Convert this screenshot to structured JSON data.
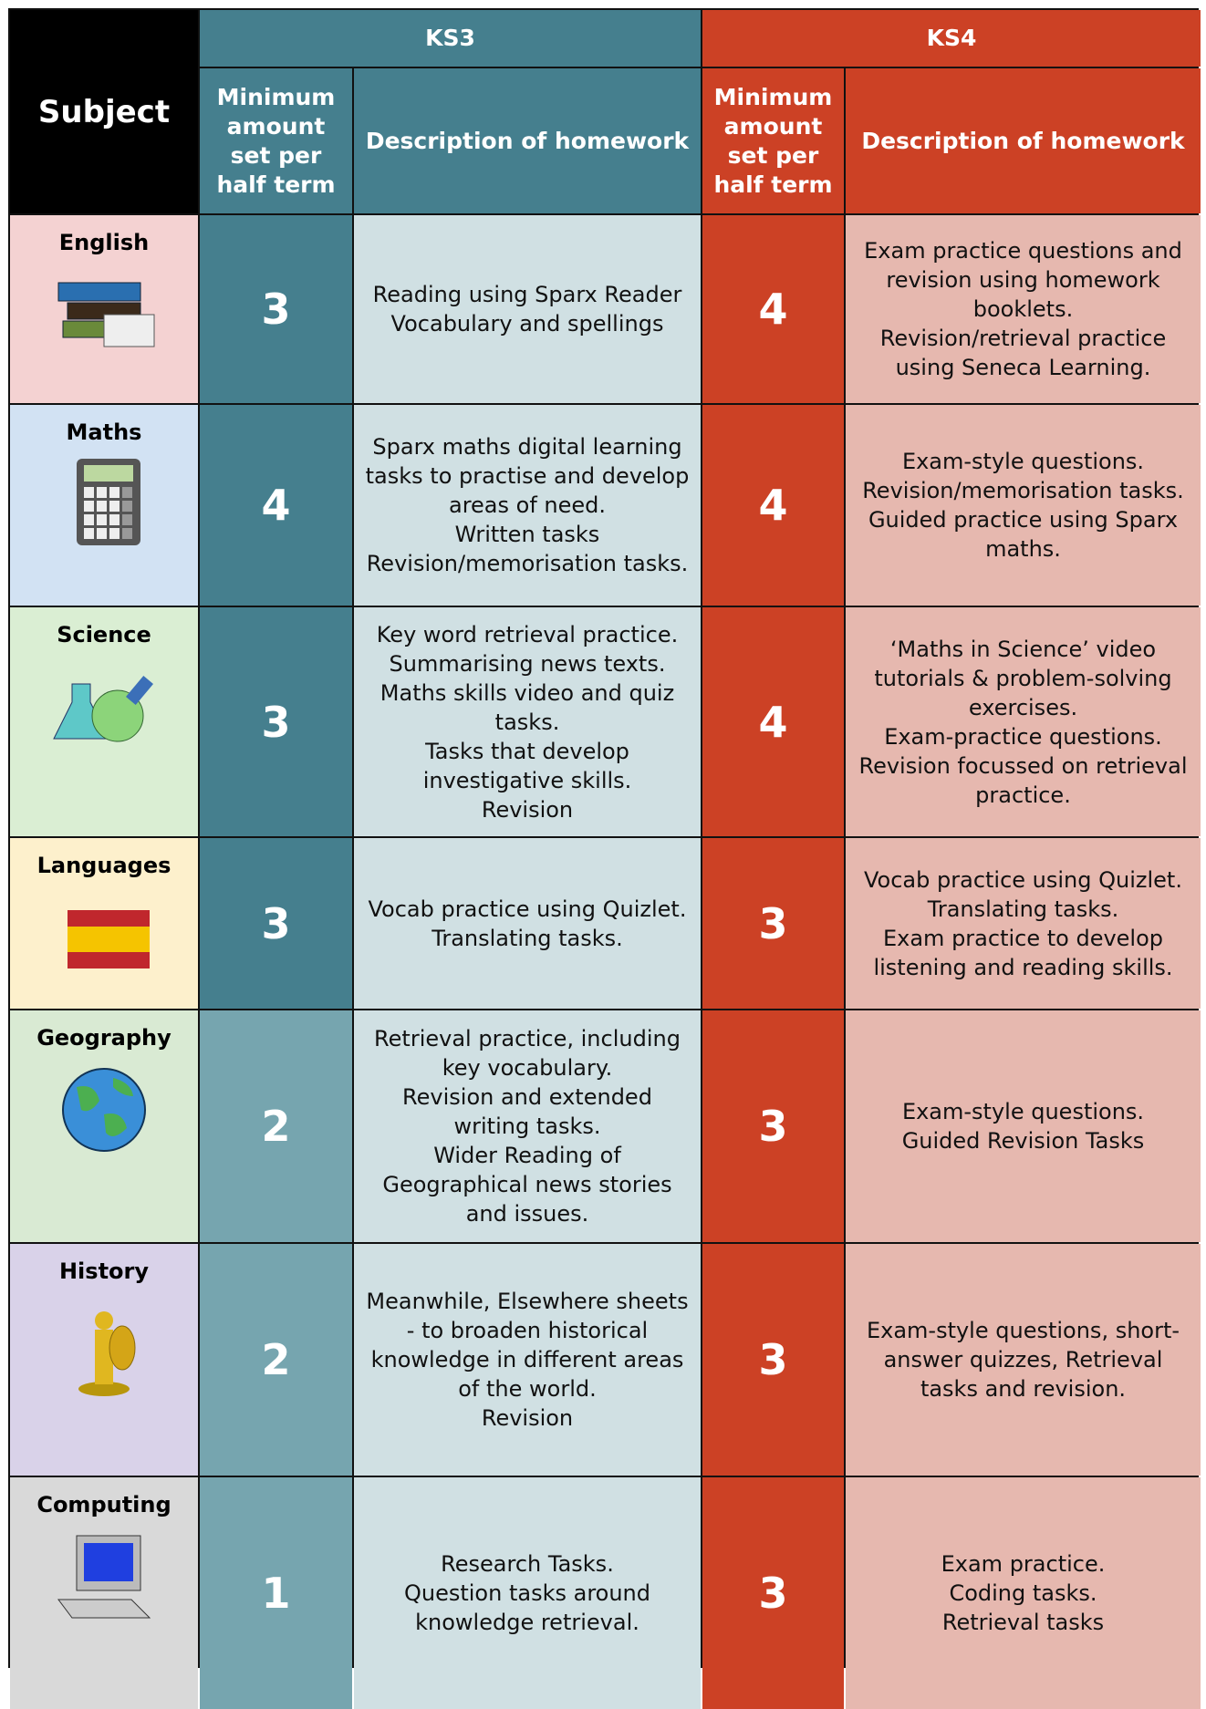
{
  "header": {
    "subject": "Subject",
    "ks3": "KS3",
    "ks4": "KS4",
    "ks3_min": "Minimum amount set per half term",
    "ks3_desc": "Description of homework",
    "ks4_min": "Minimum amount set per half term",
    "ks4_desc": "Description of homework"
  },
  "rows": [
    {
      "subject": "English",
      "ks3_min": 3,
      "ks3_desc": [
        "Reading using Sparx Reader",
        "Vocabulary and spellings"
      ],
      "ks4_min": 4,
      "ks4_desc": [
        "Exam practice questions and revision using homework booklets.",
        "Revision/retrieval practice using Seneca Learning."
      ]
    },
    {
      "subject": "Maths",
      "ks3_min": 4,
      "ks3_desc": [
        "Sparx maths digital learning tasks to practise and develop areas of need.",
        "Written tasks",
        "Revision/memorisation tasks."
      ],
      "ks4_min": 4,
      "ks4_desc": [
        "Exam-style questions.",
        "Revision/memorisation tasks.",
        "Guided practice using Sparx maths."
      ]
    },
    {
      "subject": "Science",
      "ks3_min": 3,
      "ks3_desc": [
        "Key word retrieval practice.",
        "Summarising news texts.",
        "Maths skills video and quiz tasks.",
        "Tasks that develop investigative skills.",
        "Revision"
      ],
      "ks4_min": 4,
      "ks4_desc": [
        "‘Maths in Science’ video tutorials & problem-solving exercises.",
        "Exam-practice questions.",
        "Revision focussed on retrieval practice."
      ]
    },
    {
      "subject": "Languages",
      "ks3_min": 3,
      "ks3_desc": [
        "Vocab practice using Quizlet.",
        "Translating tasks."
      ],
      "ks4_min": 3,
      "ks4_desc": [
        "Vocab practice using Quizlet.",
        "Translating tasks.",
        "Exam practice to develop listening and reading skills."
      ]
    },
    {
      "subject": "Geography",
      "ks3_min": 2,
      "ks3_desc": [
        "Retrieval practice, including key vocabulary.",
        "Revision and extended writing tasks.",
        "Wider Reading of Geographical news stories and issues."
      ],
      "ks4_min": 3,
      "ks4_desc": [
        "Exam-style questions.",
        "Guided Revision Tasks"
      ]
    },
    {
      "subject": "History",
      "ks3_min": 2,
      "ks3_desc": [
        "Meanwhile, Elsewhere sheets - to broaden historical knowledge in different areas of the world.",
        "Revision"
      ],
      "ks4_min": 3,
      "ks4_desc": [
        "Exam-style questions, short-answer quizzes, Retrieval tasks and revision."
      ]
    },
    {
      "subject": "Computing",
      "ks3_min": 1,
      "ks3_desc": [
        "Research Tasks.",
        "Question tasks around knowledge retrieval."
      ],
      "ks4_min": 3,
      "ks4_desc": [
        "Exam practice.",
        "Coding tasks.",
        "Retrieval tasks"
      ]
    }
  ]
}
